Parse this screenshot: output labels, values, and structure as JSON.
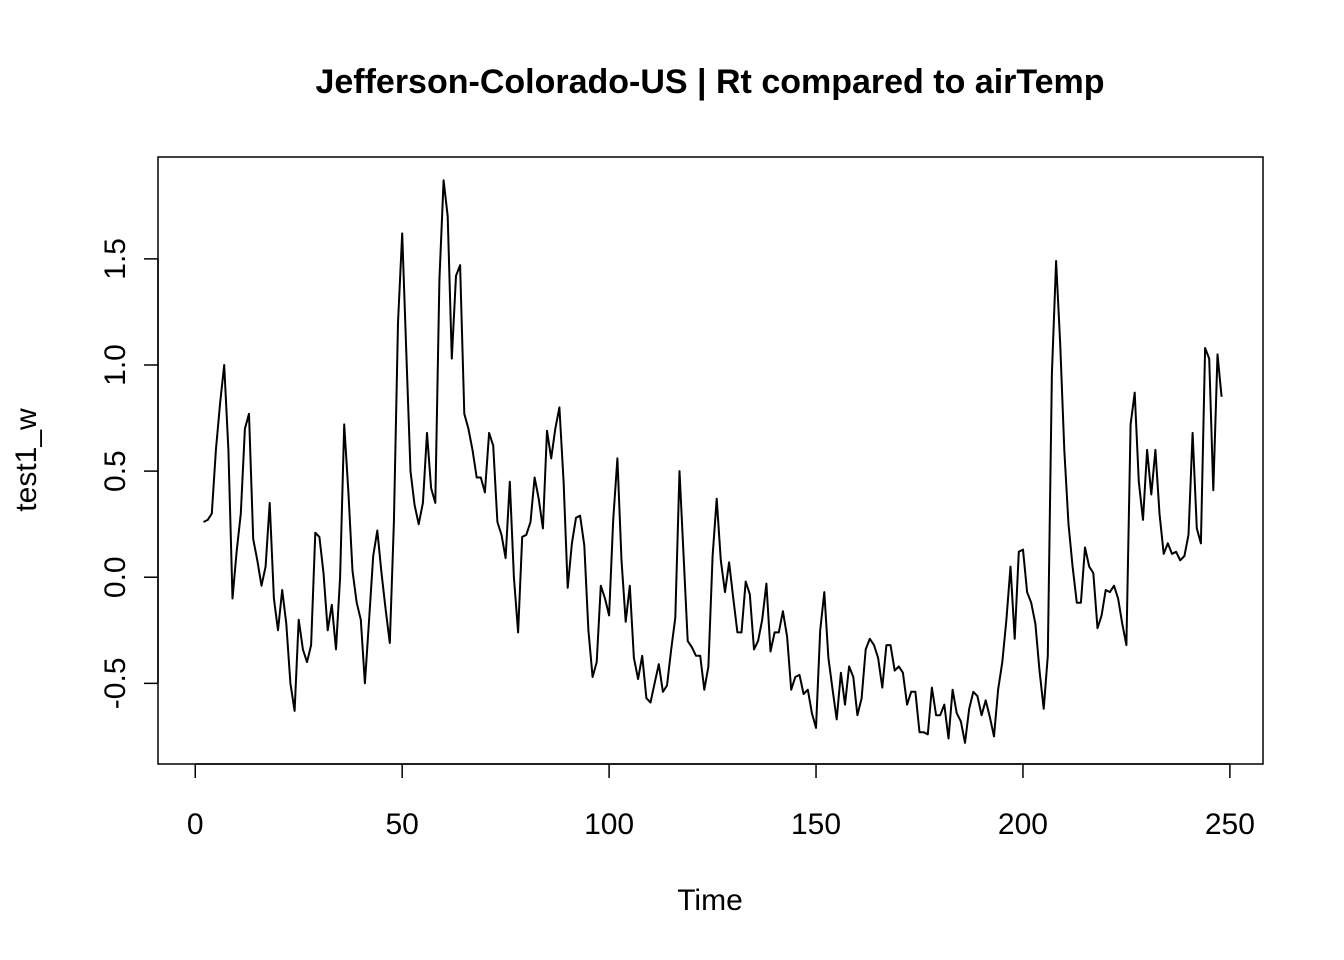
{
  "chart_data": {
    "type": "line",
    "title": "Jefferson-Colorado-US | Rt compared to airTemp",
    "xlabel": "Time",
    "ylabel": "test1_w",
    "xlim": [
      -9.0,
      258.0
    ],
    "ylim": [
      -0.88,
      1.98
    ],
    "x_ticks": [
      0,
      50,
      100,
      150,
      200,
      250
    ],
    "x_tick_labels": [
      "0",
      "50",
      "100",
      "150",
      "200",
      "250"
    ],
    "y_ticks": [
      -0.5,
      0.0,
      0.5,
      1.0,
      1.5
    ],
    "y_tick_labels": [
      "-0.5",
      "0.0",
      "0.5",
      "1.0",
      "1.5"
    ],
    "grid": false,
    "legend": "none",
    "line_color": "#000000",
    "series": [
      {
        "x_start": 2,
        "x_step": 1,
        "values": [
          0.26,
          0.27,
          0.3,
          0.6,
          0.82,
          1.0,
          0.6,
          -0.1,
          0.12,
          0.3,
          0.7,
          0.77,
          0.18,
          0.08,
          -0.04,
          0.05,
          0.35,
          -0.1,
          -0.25,
          -0.06,
          -0.22,
          -0.5,
          -0.63,
          -0.2,
          -0.34,
          -0.4,
          -0.32,
          0.21,
          0.19,
          0.02,
          -0.25,
          -0.13,
          -0.34,
          0.0,
          0.72,
          0.4,
          0.03,
          -0.12,
          -0.2,
          -0.5,
          -0.2,
          0.1,
          0.22,
          0.02,
          -0.15,
          -0.31,
          0.26,
          1.2,
          1.62,
          1.06,
          0.5,
          0.34,
          0.25,
          0.35,
          0.68,
          0.42,
          0.35,
          1.4,
          1.87,
          1.7,
          1.03,
          1.42,
          1.47,
          0.77,
          0.7,
          0.6,
          0.47,
          0.47,
          0.4,
          0.68,
          0.62,
          0.26,
          0.2,
          0.09,
          0.45,
          0.0,
          -0.26,
          0.19,
          0.2,
          0.26,
          0.47,
          0.37,
          0.23,
          0.69,
          0.56,
          0.7,
          0.8,
          0.45,
          -0.05,
          0.16,
          0.28,
          0.29,
          0.15,
          -0.25,
          -0.47,
          -0.4,
          -0.04,
          -0.1,
          -0.18,
          0.27,
          0.56,
          0.08,
          -0.21,
          -0.04,
          -0.38,
          -0.48,
          -0.37,
          -0.57,
          -0.59,
          -0.5,
          -0.41,
          -0.54,
          -0.51,
          -0.34,
          -0.19,
          0.5,
          0.1,
          -0.3,
          -0.33,
          -0.37,
          -0.37,
          -0.53,
          -0.42,
          0.1,
          0.37,
          0.08,
          -0.07,
          0.07,
          -0.1,
          -0.26,
          -0.26,
          -0.02,
          -0.08,
          -0.34,
          -0.3,
          -0.2,
          -0.03,
          -0.35,
          -0.26,
          -0.26,
          -0.16,
          -0.28,
          -0.53,
          -0.47,
          -0.46,
          -0.55,
          -0.53,
          -0.64,
          -0.71,
          -0.25,
          -0.07,
          -0.38,
          -0.53,
          -0.67,
          -0.45,
          -0.6,
          -0.42,
          -0.47,
          -0.65,
          -0.57,
          -0.34,
          -0.29,
          -0.32,
          -0.38,
          -0.52,
          -0.32,
          -0.32,
          -0.44,
          -0.42,
          -0.45,
          -0.6,
          -0.54,
          -0.54,
          -0.73,
          -0.73,
          -0.74,
          -0.52,
          -0.65,
          -0.65,
          -0.6,
          -0.76,
          -0.53,
          -0.64,
          -0.68,
          -0.78,
          -0.62,
          -0.54,
          -0.56,
          -0.65,
          -0.58,
          -0.66,
          -0.75,
          -0.53,
          -0.4,
          -0.2,
          0.05,
          -0.29,
          0.12,
          0.13,
          -0.07,
          -0.12,
          -0.22,
          -0.44,
          -0.62,
          -0.37,
          0.96,
          1.49,
          1.1,
          0.6,
          0.25,
          0.05,
          -0.12,
          -0.12,
          0.14,
          0.05,
          0.02,
          -0.24,
          -0.18,
          -0.06,
          -0.07,
          -0.04,
          -0.1,
          -0.22,
          -0.32,
          0.72,
          0.87,
          0.45,
          0.27,
          0.6,
          0.39,
          0.6,
          0.3,
          0.11,
          0.16,
          0.11,
          0.12,
          0.08,
          0.1,
          0.2,
          0.68,
          0.23,
          0.16,
          1.08,
          1.03,
          0.41,
          1.05,
          0.85
        ]
      }
    ]
  }
}
